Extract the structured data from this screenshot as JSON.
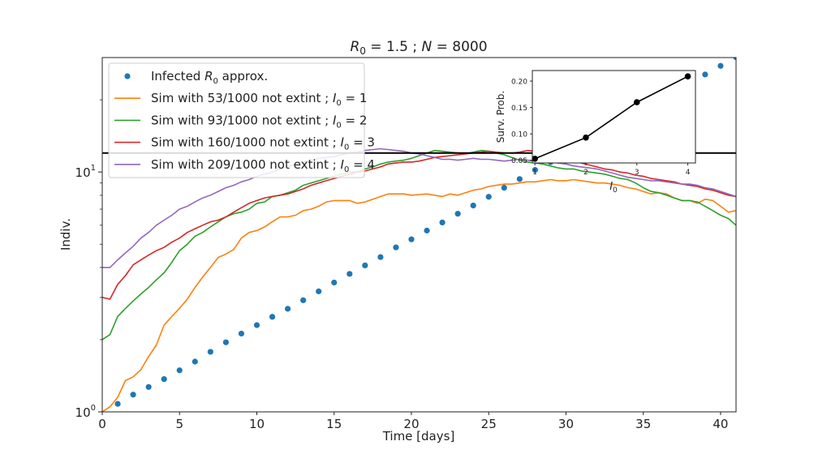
{
  "chart_data": [
    {
      "type": "line",
      "title": "R_0 = 1.5 ; N = 8000",
      "title_parts": {
        "r": "R",
        "r_sub": "0",
        "r_rest": " = 1.5 ; ",
        "n": "N",
        "n_rest": " = 8000"
      },
      "xlabel": "Time [days]",
      "ylabel": "Indiv.",
      "yscale": "log",
      "xlim": [
        0,
        41
      ],
      "ylim": [
        1,
        30
      ],
      "xticks": [
        0,
        5,
        10,
        15,
        20,
        25,
        30,
        35,
        40
      ],
      "yticks": [
        {
          "base": "10",
          "exp": "0",
          "value": 1
        },
        {
          "base": "10",
          "exp": "1",
          "value": 10
        }
      ],
      "hline": 12,
      "legend_position": "upper-left",
      "series": [
        {
          "name": "Infected R_0 approx.",
          "label_parts": {
            "pre": "Infected ",
            "var": "R",
            "sub": "0",
            "post": " approx."
          },
          "style": "markers",
          "color": "#1f77b4",
          "x": [
            1,
            2,
            3,
            4,
            5,
            6,
            7,
            8,
            9,
            10,
            11,
            12,
            13,
            14,
            15,
            16,
            17,
            18,
            19,
            20,
            21,
            22,
            23,
            24,
            25,
            26,
            27,
            28,
            29,
            30,
            31,
            32,
            33,
            34,
            35,
            36,
            37,
            38,
            39,
            40,
            41
          ],
          "y": [
            1.08,
            1.18,
            1.27,
            1.37,
            1.49,
            1.62,
            1.78,
            1.95,
            2.12,
            2.3,
            2.49,
            2.69,
            2.92,
            3.18,
            3.46,
            3.76,
            4.08,
            4.42,
            4.85,
            5.24,
            5.7,
            6.16,
            6.7,
            7.25,
            7.88,
            8.6,
            9.35,
            10.2,
            11.0,
            12.1,
            13.1,
            14.2,
            15.5,
            16.8,
            18.3,
            19.9,
            21.6,
            23.5,
            25.5,
            27.7,
            30.1
          ]
        },
        {
          "name": "Sim with 53/1000 not extint ; I_0 = 1",
          "label_parts": {
            "pre": "Sim with 53/1000 not extint ; ",
            "var": "I",
            "sub": "0",
            "post": " = 1"
          },
          "style": "line",
          "color": "#ff7f0e",
          "x": [
            0,
            0.5,
            1,
            1.5,
            2,
            2.5,
            3,
            3.5,
            4,
            4.5,
            5,
            5.5,
            6,
            6.5,
            7,
            7.5,
            8,
            8.5,
            9,
            9.5,
            10,
            10.5,
            11,
            11.5,
            12,
            12.5,
            13,
            13.5,
            14,
            14.5,
            15,
            15.5,
            16,
            16.5,
            17,
            17.5,
            18,
            18.5,
            19,
            19.5,
            20,
            20.5,
            21,
            21.5,
            22,
            22.5,
            23,
            23.5,
            24,
            24.5,
            25,
            25.5,
            26,
            26.5,
            27,
            27.5,
            28,
            28.5,
            29,
            29.5,
            30,
            30.5,
            31,
            31.5,
            32,
            32.5,
            33,
            33.5,
            34,
            34.5,
            35,
            35.5,
            36,
            36.5,
            37,
            37.5,
            38,
            38.5,
            39,
            39.5,
            40,
            40.5,
            41
          ],
          "y": [
            1.0,
            1.05,
            1.15,
            1.35,
            1.4,
            1.5,
            1.7,
            1.9,
            2.3,
            2.5,
            2.7,
            2.95,
            3.3,
            3.65,
            4.0,
            4.4,
            4.55,
            4.75,
            5.3,
            5.6,
            5.7,
            5.9,
            6.2,
            6.5,
            6.5,
            6.6,
            6.9,
            7.0,
            7.2,
            7.5,
            7.6,
            7.6,
            7.6,
            7.4,
            7.5,
            7.7,
            7.9,
            8.1,
            8.1,
            8.1,
            8.0,
            8.05,
            8.1,
            8.0,
            7.9,
            8.1,
            8.0,
            8.2,
            8.4,
            8.5,
            8.7,
            8.8,
            8.9,
            8.9,
            9.0,
            9.1,
            9.1,
            9.2,
            9.3,
            9.2,
            9.2,
            9.3,
            9.2,
            9.1,
            9.0,
            9.0,
            8.9,
            8.8,
            8.6,
            8.5,
            8.3,
            8.1,
            8.2,
            8.1,
            7.8,
            7.6,
            7.6,
            7.4,
            7.7,
            7.6,
            7.2,
            6.8,
            6.9
          ]
        },
        {
          "name": "Sim with 93/1000 not extint ; I_0 = 2",
          "label_parts": {
            "pre": "Sim with 93/1000 not extint ; ",
            "var": "I",
            "sub": "0",
            "post": " = 2"
          },
          "style": "line",
          "color": "#2ca02c",
          "x": [
            0,
            0.5,
            1,
            1.5,
            2,
            2.5,
            3,
            3.5,
            4,
            4.5,
            5,
            5.5,
            6,
            6.5,
            7,
            7.5,
            8,
            8.5,
            9,
            9.5,
            10,
            10.5,
            11,
            11.5,
            12,
            12.5,
            13,
            13.5,
            14,
            14.5,
            15,
            15.5,
            16,
            16.5,
            17,
            17.5,
            18,
            18.5,
            19,
            19.5,
            20,
            20.5,
            21,
            21.5,
            22,
            22.5,
            23,
            23.5,
            24,
            24.5,
            25,
            25.5,
            26,
            26.5,
            27,
            27.5,
            28,
            28.5,
            29,
            29.5,
            30,
            30.5,
            31,
            31.5,
            32,
            32.5,
            33,
            33.5,
            34,
            34.5,
            35,
            35.5,
            36,
            36.5,
            37,
            37.5,
            38,
            38.5,
            39,
            39.5,
            40,
            40.5,
            41
          ],
          "y": [
            2.0,
            2.1,
            2.5,
            2.7,
            2.9,
            3.1,
            3.3,
            3.55,
            3.8,
            4.2,
            4.7,
            5.0,
            5.4,
            5.6,
            5.9,
            6.2,
            6.5,
            6.7,
            6.8,
            7.0,
            7.4,
            7.5,
            7.9,
            8.0,
            8.2,
            8.4,
            8.8,
            9.0,
            9.2,
            9.4,
            9.6,
            9.8,
            10.0,
            10.0,
            10.3,
            10.5,
            10.8,
            11.0,
            11.1,
            11.2,
            11.4,
            11.7,
            12.0,
            12.3,
            12.2,
            12.1,
            12.0,
            11.9,
            12.1,
            12.3,
            12.2,
            12.0,
            11.8,
            11.5,
            11.2,
            11.0,
            10.9,
            10.8,
            10.6,
            10.4,
            10.3,
            10.3,
            10.1,
            10.0,
            9.9,
            9.8,
            9.6,
            9.4,
            9.3,
            9.0,
            8.6,
            8.3,
            8.2,
            8.0,
            7.8,
            7.6,
            7.6,
            7.5,
            7.2,
            6.9,
            6.6,
            6.4,
            6.0
          ]
        },
        {
          "name": "Sim with 160/1000 not extint ; I_0 = 3",
          "label_parts": {
            "pre": "Sim with 160/1000 not extint ; ",
            "var": "I",
            "sub": "0",
            "post": " = 3"
          },
          "style": "line",
          "color": "#d62728",
          "x": [
            0,
            0.5,
            1,
            1.5,
            2,
            2.5,
            3,
            3.5,
            4,
            4.5,
            5,
            5.5,
            6,
            6.5,
            7,
            7.5,
            8,
            8.5,
            9,
            9.5,
            10,
            10.5,
            11,
            11.5,
            12,
            12.5,
            13,
            13.5,
            14,
            14.5,
            15,
            15.5,
            16,
            16.5,
            17,
            17.5,
            18,
            18.5,
            19,
            19.5,
            20,
            20.5,
            21,
            21.5,
            22,
            22.5,
            23,
            23.5,
            24,
            24.5,
            25,
            25.5,
            26,
            26.5,
            27,
            27.5,
            28,
            28.5,
            29,
            29.5,
            30,
            30.5,
            31,
            31.5,
            32,
            32.5,
            33,
            33.5,
            34,
            34.5,
            35,
            35.5,
            36,
            36.5,
            37,
            37.5,
            38,
            38.5,
            39,
            39.5,
            40,
            40.5,
            41
          ],
          "y": [
            3.0,
            2.95,
            3.4,
            3.7,
            4.1,
            4.3,
            4.5,
            4.7,
            4.85,
            5.1,
            5.3,
            5.6,
            5.8,
            6.0,
            6.2,
            6.3,
            6.5,
            6.8,
            7.1,
            7.4,
            7.6,
            7.8,
            7.9,
            8.0,
            8.1,
            8.3,
            8.5,
            8.8,
            9.0,
            9.2,
            9.4,
            9.6,
            9.8,
            10.0,
            10.1,
            10.3,
            10.5,
            10.8,
            10.9,
            11.0,
            11.0,
            11.1,
            11.3,
            11.5,
            11.6,
            11.7,
            11.8,
            11.9,
            12.0,
            12.1,
            12.2,
            12.1,
            12.0,
            12.0,
            12.1,
            12.3,
            12.2,
            12.0,
            11.7,
            11.5,
            11.3,
            11.1,
            10.9,
            10.7,
            10.5,
            10.3,
            10.2,
            10.0,
            9.9,
            9.7,
            9.6,
            9.4,
            9.3,
            9.2,
            9.1,
            8.9,
            8.8,
            8.7,
            8.5,
            8.4,
            8.2,
            8.0,
            7.9
          ]
        },
        {
          "name": "Sim with 209/1000 not extint ; I_0 = 4",
          "label_parts": {
            "pre": "Sim with 209/1000 not extint ; ",
            "var": "I",
            "sub": "0",
            "post": " = 4"
          },
          "style": "line",
          "color": "#9467bd",
          "x": [
            0,
            0.5,
            1,
            1.5,
            2,
            2.5,
            3,
            3.5,
            4,
            4.5,
            5,
            5.5,
            6,
            6.5,
            7,
            7.5,
            8,
            8.5,
            9,
            9.5,
            10,
            10.5,
            11,
            11.5,
            12,
            12.5,
            13,
            13.5,
            14,
            14.5,
            15,
            15.5,
            16,
            16.5,
            17,
            17.5,
            18,
            18.5,
            19,
            19.5,
            20,
            20.5,
            21,
            21.5,
            22,
            22.5,
            23,
            23.5,
            24,
            24.5,
            25,
            25.5,
            26,
            26.5,
            27,
            27.5,
            28,
            28.5,
            29,
            29.5,
            30,
            30.5,
            31,
            31.5,
            32,
            32.5,
            33,
            33.5,
            34,
            34.5,
            35,
            35.5,
            36,
            36.5,
            37,
            37.5,
            38,
            38.5,
            39,
            39.5,
            40,
            40.5,
            41
          ],
          "y": [
            4.0,
            4.0,
            4.3,
            4.6,
            4.9,
            5.3,
            5.6,
            6.0,
            6.3,
            6.6,
            7.0,
            7.2,
            7.5,
            7.8,
            8.0,
            8.3,
            8.6,
            8.8,
            9.1,
            9.3,
            9.6,
            9.8,
            10.0,
            10.3,
            10.5,
            10.8,
            11.0,
            11.2,
            11.4,
            11.5,
            11.6,
            11.8,
            12.0,
            12.1,
            12.3,
            12.4,
            12.5,
            12.4,
            12.3,
            12.2,
            12.0,
            11.9,
            11.7,
            11.5,
            11.3,
            11.3,
            11.2,
            11.3,
            11.4,
            11.3,
            11.3,
            11.2,
            11.1,
            11.2,
            11.3,
            11.2,
            11.1,
            11.0,
            11.0,
            10.9,
            10.8,
            10.6,
            10.5,
            10.4,
            10.3,
            10.1,
            9.9,
            9.7,
            9.5,
            9.4,
            9.3,
            9.2,
            9.2,
            9.1,
            9.0,
            8.9,
            8.9,
            8.8,
            8.6,
            8.5,
            8.3,
            8.1,
            7.9
          ]
        }
      ]
    },
    {
      "type": "line",
      "inset": true,
      "xlabel": "I_0",
      "xlabel_parts": {
        "var": "I",
        "sub": "0"
      },
      "ylabel": "Surv. Prob.",
      "xlim": [
        0.95,
        4.15
      ],
      "ylim": [
        0.045,
        0.22
      ],
      "xticks": [
        1,
        2,
        3,
        4
      ],
      "yticks": [
        "0.05",
        "0.10",
        "0.15",
        "0.20"
      ],
      "series": [
        {
          "color": "#000000",
          "x": [
            1,
            2,
            3,
            4
          ],
          "y": [
            0.053,
            0.093,
            0.16,
            0.209
          ]
        }
      ]
    }
  ]
}
